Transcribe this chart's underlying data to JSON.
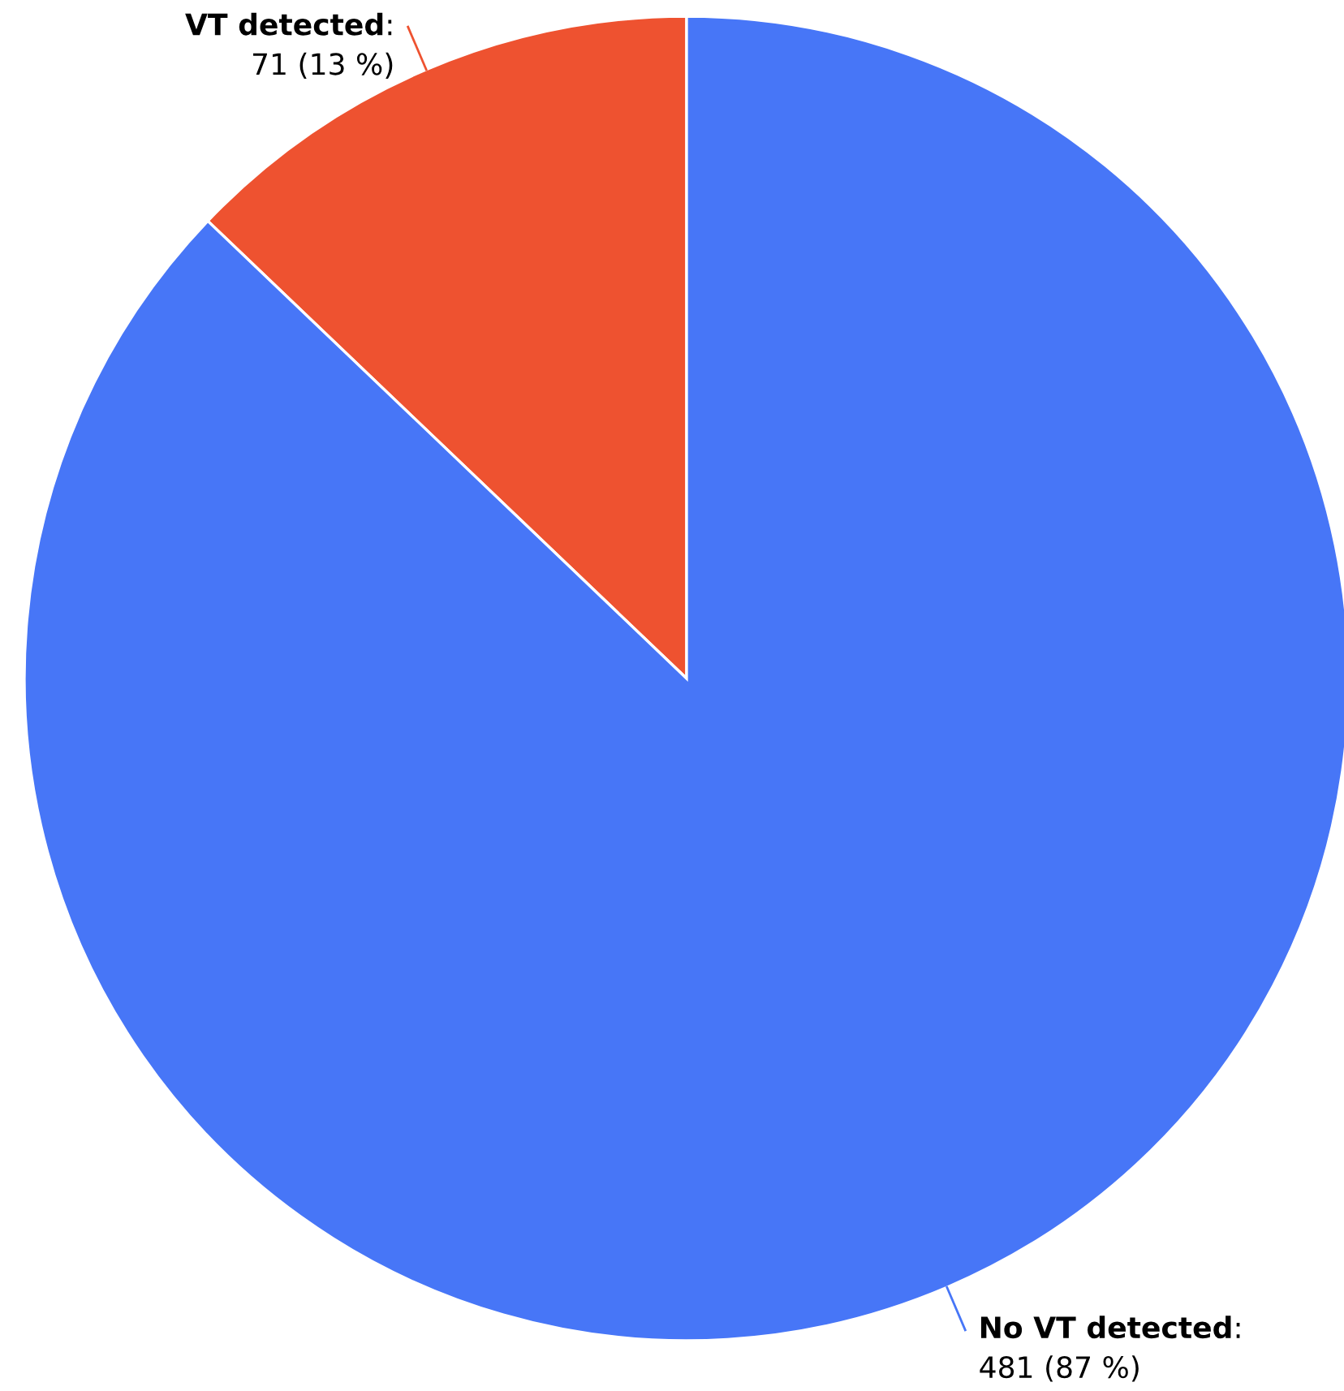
{
  "chart_data": {
    "type": "pie",
    "categories": [
      "VT detected",
      "No VT detected"
    ],
    "annotations": [
      ":",
      ":"
    ],
    "values": [
      71,
      481
    ],
    "colors": [
      "#ee5230",
      "#4776f7"
    ],
    "value_labels": [
      "71 (13 %)",
      "481 (87 %)"
    ]
  }
}
